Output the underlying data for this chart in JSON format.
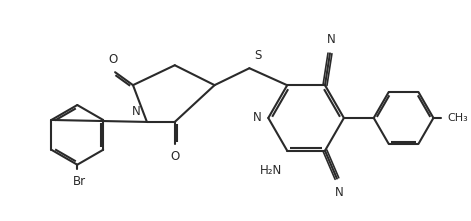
{
  "bg_color": "#ffffff",
  "line_color": "#2a2a2a",
  "line_width": 1.5,
  "figsize": [
    4.71,
    2.21
  ],
  "dpi": 100,
  "xlim": [
    0.0,
    4.71
  ],
  "ylim": [
    0.0,
    2.21
  ]
}
